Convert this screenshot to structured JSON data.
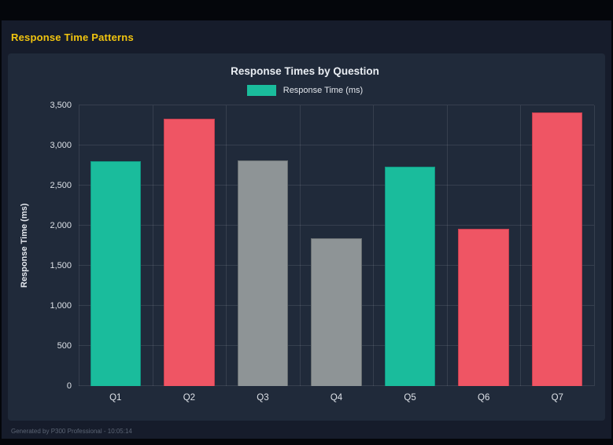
{
  "header": {
    "title": "Response Time Patterns"
  },
  "chart_data": {
    "type": "bar",
    "title": "Response Times by Question",
    "categories": [
      "Q1",
      "Q2",
      "Q3",
      "Q4",
      "Q5",
      "Q6",
      "Q7"
    ],
    "values": [
      2800,
      3330,
      2810,
      1845,
      2735,
      1960,
      3410
    ],
    "bar_colors": [
      "#1abc9c",
      "#ef5564",
      "#8e9496",
      "#8e9496",
      "#1abc9c",
      "#ef5564",
      "#ef5564"
    ],
    "bar_border_colors": [
      "#109582",
      "#c43f4f",
      "#676d70",
      "#676d70",
      "#109582",
      "#c43f4f",
      "#c43f4f"
    ],
    "xlabel": "",
    "ylabel": "Response Time (ms)",
    "ylim": [
      0,
      3500
    ],
    "ytick_step": 500,
    "ytick_labels": [
      "0",
      "500",
      "1,000",
      "1,500",
      "2,000",
      "2,500",
      "3,000",
      "3,500"
    ],
    "grid": true,
    "legend_position": "top",
    "legend": [
      {
        "label": "Response Time (ms)",
        "color": "#1abc9c"
      }
    ]
  },
  "footer": {
    "text": "Generated by P300 Professional - 10:05:14"
  },
  "colors": {
    "heading_yellow": "#f1c40f",
    "page_background": "#161c2b",
    "panel_background": "#202a3a",
    "frame_black": "#04060b"
  }
}
